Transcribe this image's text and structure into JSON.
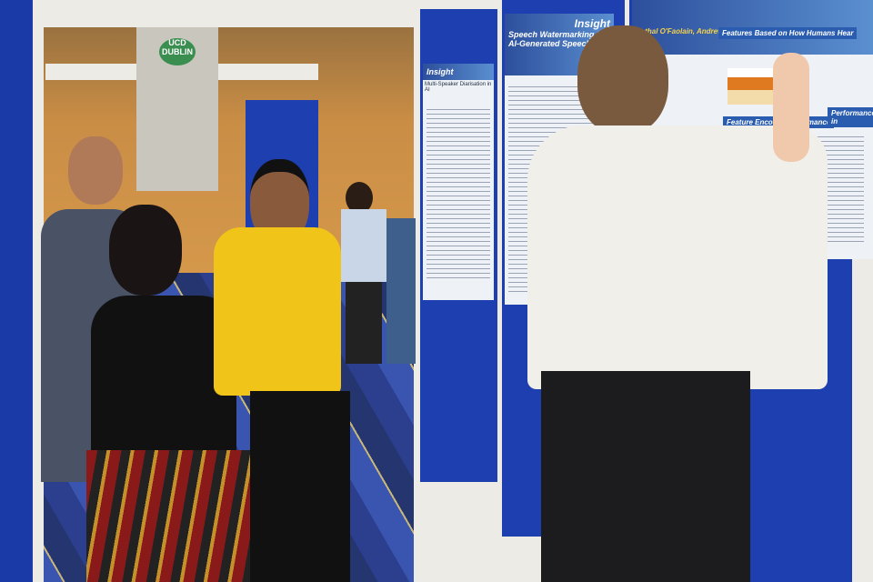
{
  "scene": {
    "venue_sign": "UCD DUBLIN",
    "posters": [
      {
        "brand": "Insight",
        "title": "Multi-Speaker Diarisation in AI"
      },
      {
        "brand": "Insight",
        "title": "Speech Watermarking for AI-Generated Speech"
      },
      {
        "authors": "Cathal O'Faolain, Andrew Hines",
        "sections": [
          "Features Based on How Humans Hear",
          "Feature Encoder Performance",
          "Performance in"
        ]
      }
    ]
  },
  "colors": {
    "board": "#1d3fb0",
    "carpet": "#2c3f8f",
    "wall": "#d79a4c",
    "yellow_shirt": "#f0c419"
  }
}
